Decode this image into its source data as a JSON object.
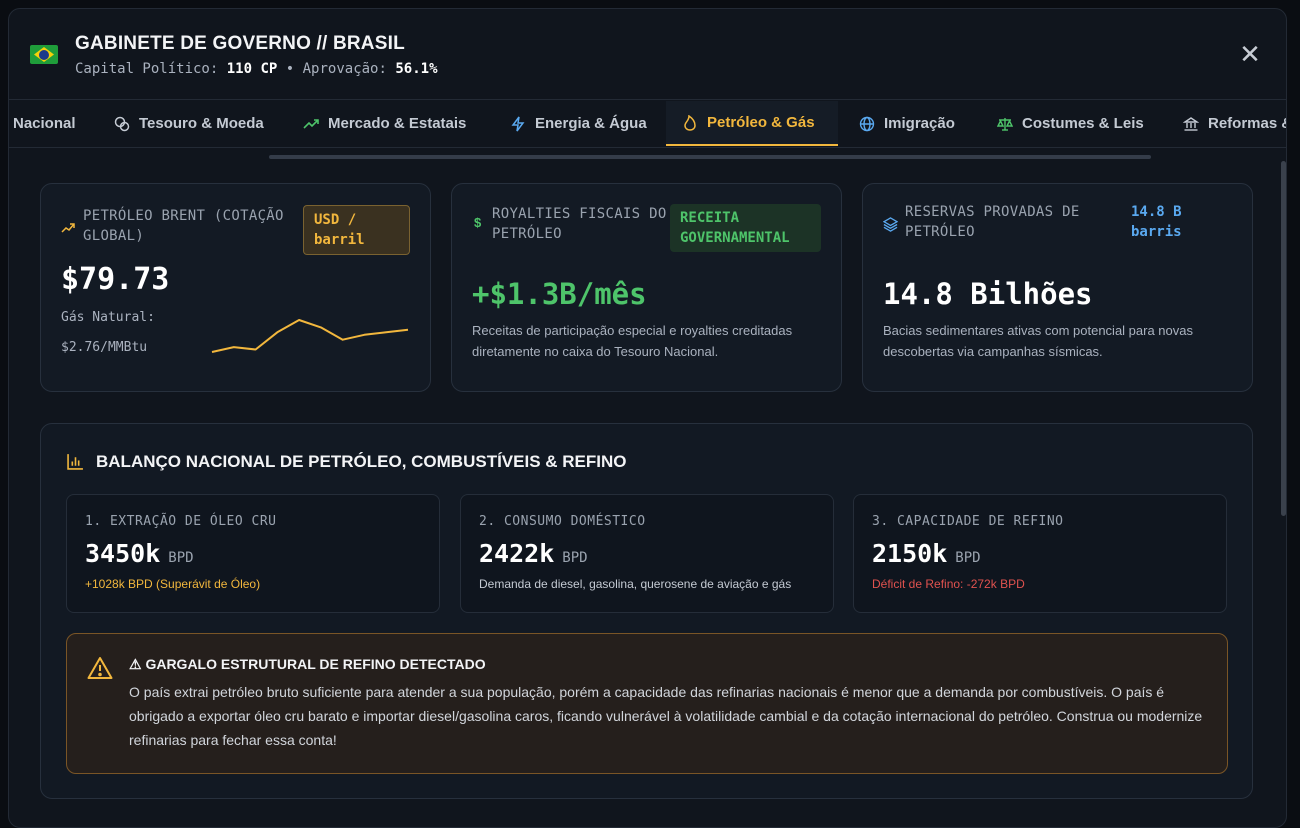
{
  "header": {
    "title": "GABINETE DE GOVERNO // BRASIL",
    "capital_label": "Capital Político:",
    "capital_value": "110 CP",
    "separator": "•",
    "approval_label": "Aprovação:",
    "approval_value": "56.1%",
    "close_glyph": "✕"
  },
  "tabs": [
    {
      "label": "Nacional",
      "icon": "home-icon"
    },
    {
      "label": "Tesouro & Moeda",
      "icon": "coins-icon"
    },
    {
      "label": "Mercado & Estatais",
      "icon": "trending-up-icon"
    },
    {
      "label": "Energia & Água",
      "icon": "bolt-icon"
    },
    {
      "label": "Petróleo & Gás",
      "icon": "flame-icon",
      "active": true
    },
    {
      "label": "Imigração",
      "icon": "globe-icon"
    },
    {
      "label": "Costumes & Leis",
      "icon": "scale-icon"
    },
    {
      "label": "Reformas &",
      "icon": "landmark-icon"
    }
  ],
  "cards": {
    "brent": {
      "label": "PETRÓLEO BRENT (COTAÇÃO GLOBAL)",
      "badge": "USD / barril",
      "value": "$79.73",
      "gas_label": "Gás Natural:",
      "gas_value": "$2.76/MMBtu",
      "sparkline": [
        2.0,
        3.0,
        2.5,
        6.0,
        8.5,
        7.0,
        4.5,
        5.5,
        6.0,
        6.5
      ],
      "accent": "#f2b73d"
    },
    "royalties": {
      "label": "ROYALTIES FISCAIS DO PETRÓLEO",
      "badge": "RECEITA GOVERNAMENTAL",
      "value": "+$1.3B/mês",
      "desc": "Receitas de participação especial e royalties creditadas diretamente no caixa do Tesouro Nacional.",
      "accent": "#4ec46a"
    },
    "reserves": {
      "label": "RESERVAS PROVADAS DE PETRÓLEO",
      "badge": "14.8 B barris",
      "value": "14.8 Bilhões",
      "desc": "Bacias sedimentares ativas com potencial para novas descobertas via campanhas sísmicas.",
      "accent": "#5aa9f0"
    }
  },
  "balance": {
    "title": "BALANÇO NACIONAL DE PETRÓLEO, COMBUSTÍVEIS & REFINO",
    "items": [
      {
        "label": "1. EXTRAÇÃO DE ÓLEO CRU",
        "value": "3450k",
        "unit": "BPD",
        "note": "+1028k BPD (Superávit de Óleo)",
        "note_color": "#f2b73d"
      },
      {
        "label": "2. CONSUMO DOMÉSTICO",
        "value": "2422k",
        "unit": "BPD",
        "note": "Demanda de diesel, gasolina, querosene de aviação e gás",
        "note_color": "#c4cad3"
      },
      {
        "label": "3. CAPACIDADE DE REFINO",
        "value": "2150k",
        "unit": "BPD",
        "note": "Déficit de Refino: -272k BPD",
        "note_color": "#e0524f"
      }
    ],
    "alert": {
      "title": "⚠ GARGALO ESTRUTURAL DE REFINO DETECTADO",
      "body": "O país extrai petróleo bruto suficiente para atender a sua população, porém a capacidade das refinarias nacionais é menor que a demanda por combustíveis. O país é obrigado a exportar óleo cru barato e importar diesel/gasolina caros, ficando vulnerável à volatilidade cambial e da cotação internacional do petróleo. Construa ou modernize refinarias para fechar essa conta!"
    }
  }
}
